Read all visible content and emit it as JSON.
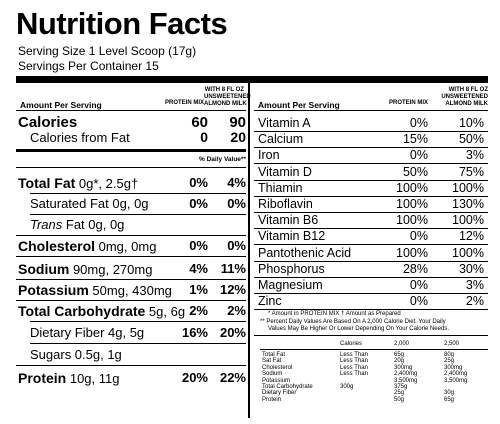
{
  "title": "Nutrition Facts",
  "serving_size": "Serving Size 1 Level Scoop (17g)",
  "servings_per_container": "Servings Per Container 15",
  "left": {
    "amount_per_serving": "Amount Per Serving",
    "col1_header": "PROTEIN MIX",
    "col2_header_line1": "WITH 8 FL OZ",
    "col2_header_line2": "UNSWEETENED",
    "col2_header_line3": "ALMOND MILK",
    "calories_label": "Calories",
    "calories_v1": "60",
    "calories_v2": "90",
    "cal_fat_label": "Calories from Fat",
    "cal_fat_v1": "0",
    "cal_fat_v2": "20",
    "dv_header": "% Daily Value**",
    "rows": [
      {
        "bold": "Total Fat",
        "rest": " 0g*, 2.5g†",
        "v1": "0%",
        "v2": "4%"
      },
      {
        "bold": "",
        "rest": "Saturated Fat 0g, 0g",
        "v1": "0%",
        "v2": "0%"
      },
      {
        "bold": "",
        "italic": "Trans",
        "rest": " Fat 0g, 0g",
        "v1": "",
        "v2": ""
      },
      {
        "bold": "Cholesterol",
        "rest": " 0mg, 0mg",
        "v1": "0%",
        "v2": "0%"
      },
      {
        "bold": "Sodium",
        "rest": " 90mg, 270mg",
        "v1": "4%",
        "v2": "11%"
      },
      {
        "bold": "Potassium",
        "rest": " 50mg, 430mg",
        "v1": "1%",
        "v2": "12%"
      },
      {
        "bold": "Total Carbohydrate",
        "rest": " 5g, 6g",
        "v1": "2%",
        "v2": "2%"
      },
      {
        "bold": "",
        "rest": "Dietary Fiber 4g, 5g",
        "v1": "16%",
        "v2": "20%"
      },
      {
        "bold": "",
        "rest": "Sugars 0.5g, 1g",
        "v1": "",
        "v2": ""
      },
      {
        "bold": "Protein",
        "rest": " 10g, 11g",
        "v1": "20%",
        "v2": "22%"
      }
    ]
  },
  "right": {
    "amount_per_serving": "Amount Per Serving",
    "col1_header": "PROTEIN MIX",
    "col2_header_line1": "WITH 8 FL OZ",
    "col2_header_line2": "UNSWEETENED",
    "col2_header_line3": "ALMOND MILK",
    "rows": [
      {
        "label": "Vitamin A",
        "v1": "0%",
        "v2": "10%"
      },
      {
        "label": "Calcium",
        "v1": "15%",
        "v2": "50%"
      },
      {
        "label": "Iron",
        "v1": "0%",
        "v2": "3%"
      },
      {
        "label": "Vitamin D",
        "v1": "50%",
        "v2": "75%"
      },
      {
        "label": "Thiamin",
        "v1": "100%",
        "v2": "100%"
      },
      {
        "label": "Riboflavin",
        "v1": "100%",
        "v2": "130%"
      },
      {
        "label": "Vitamin B6",
        "v1": "100%",
        "v2": "100%"
      },
      {
        "label": "Vitamin B12",
        "v1": "0%",
        "v2": "12%"
      },
      {
        "label": "Pantothenic Acid",
        "v1": "100%",
        "v2": "100%"
      },
      {
        "label": "Phosphorus",
        "v1": "28%",
        "v2": "30%"
      },
      {
        "label": "Magnesium",
        "v1": "0%",
        "v2": "3%"
      },
      {
        "label": "Zinc",
        "v1": "0%",
        "v2": "2%"
      }
    ],
    "footnote1": "* Amount in PROTEIN MIX  † Amount as Prepared",
    "footnote2_line1": "** Percent Daily Values Are Based On A 2,000 Calorie Diet. Your Daily",
    "footnote2_line2": "Values May Be Higher Or Lower Depending On Your Calorie Needs.",
    "table": {
      "header": [
        "Calories",
        "2,000",
        "2,500"
      ],
      "rows": [
        {
          "label": "Total Fat",
          "qual": "Less Than",
          "a": "65g",
          "b": "80g"
        },
        {
          "label": "  Sat Fat",
          "qual": "Less Than",
          "a": "20g",
          "b": "25g"
        },
        {
          "label": "Cholesterol",
          "qual": "Less Than",
          "a": "300mg",
          "b": "300mg"
        },
        {
          "label": "Sodium",
          "qual": "Less Than",
          "a": "2,400mg",
          "b": "2,400mg"
        },
        {
          "label": "Potassium",
          "qual": "",
          "a": "3,500mg",
          "b": "3,500mg"
        },
        {
          "label": "Total Carbohydrate",
          "qual": "300g",
          "a": "375g",
          "b": ""
        },
        {
          "label": "  Dietary Fiber",
          "qual": "",
          "a": "25g",
          "b": "30g"
        },
        {
          "label": "Protein",
          "qual": "",
          "a": "50g",
          "b": "65g"
        }
      ]
    }
  }
}
